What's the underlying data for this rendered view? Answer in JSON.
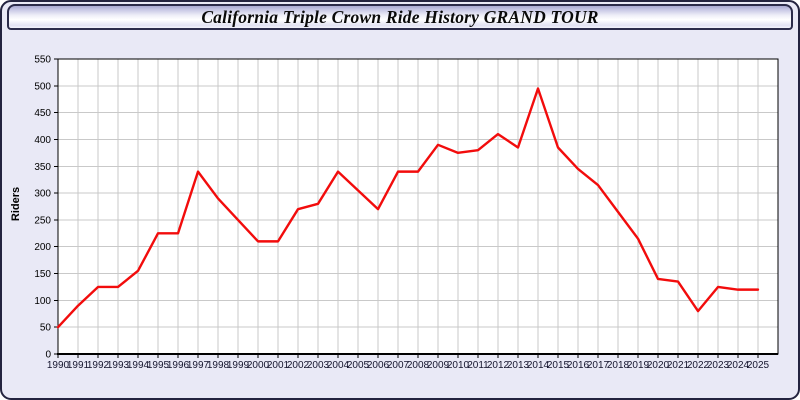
{
  "window": {
    "title": "California Triple Crown Ride History GRAND TOUR",
    "background_color": "#e9e9f6",
    "border_color": "#23233f"
  },
  "chart_data": {
    "type": "line",
    "title": "California Triple Crown Ride History GRAND TOUR",
    "xlabel": "",
    "ylabel": "Riders",
    "x": [
      1990,
      1991,
      1992,
      1993,
      1994,
      1995,
      1996,
      1997,
      1998,
      1999,
      2000,
      2001,
      2002,
      2003,
      2004,
      2005,
      2006,
      2007,
      2008,
      2009,
      2010,
      2011,
      2012,
      2013,
      2014,
      2015,
      2016,
      2017,
      2018,
      2019,
      2020,
      2021,
      2022,
      2023,
      2024,
      2025
    ],
    "series": [
      {
        "name": "Riders",
        "color": "#f20c0c",
        "values": [
          50,
          90,
          125,
          125,
          155,
          225,
          225,
          340,
          290,
          250,
          210,
          210,
          270,
          280,
          340,
          305,
          270,
          340,
          340,
          390,
          375,
          380,
          410,
          385,
          495,
          385,
          345,
          315,
          265,
          215,
          140,
          135,
          80,
          125,
          120,
          120
        ]
      }
    ],
    "ylim": [
      0,
      550
    ],
    "ytick_step": 50,
    "yticks": [
      0,
      50,
      100,
      150,
      200,
      250,
      300,
      350,
      400,
      450,
      500,
      550
    ],
    "grid": true,
    "grid_color": "#c9c9c9",
    "plot_background": "#ffffff",
    "axis_color": "#000000",
    "tick_label_color": "#15152e",
    "legend": "none"
  }
}
